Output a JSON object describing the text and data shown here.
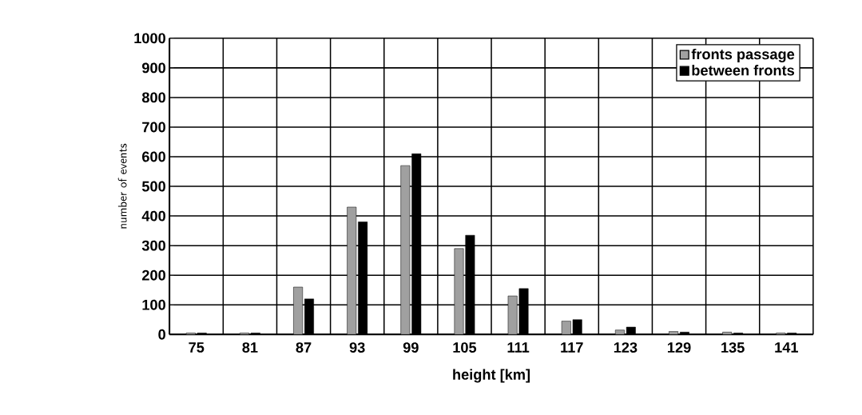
{
  "chart_data": {
    "type": "bar",
    "xlabel": "height [km]",
    "ylabel": "number of events",
    "categories": [
      "75",
      "81",
      "87",
      "93",
      "99",
      "105",
      "111",
      "117",
      "123",
      "129",
      "135",
      "141"
    ],
    "series": [
      {
        "name": "fronts passage",
        "color": "#a0a0a0",
        "values": [
          5,
          5,
          160,
          430,
          570,
          290,
          130,
          45,
          15,
          10,
          8,
          5
        ]
      },
      {
        "name": "between fronts",
        "color": "#000000",
        "values": [
          5,
          5,
          120,
          380,
          610,
          335,
          155,
          50,
          25,
          8,
          5,
          5
        ]
      }
    ],
    "ylim": [
      0,
      1000
    ],
    "yticks": [
      0,
      100,
      200,
      300,
      400,
      500,
      600,
      700,
      800,
      900,
      1000
    ],
    "grid": true,
    "legend": "top right"
  }
}
